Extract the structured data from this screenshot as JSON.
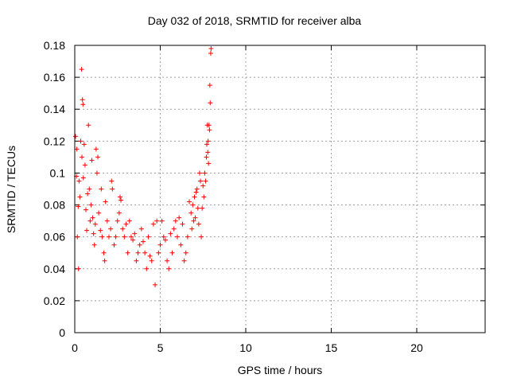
{
  "chart_data": {
    "type": "scatter",
    "title": "Day 032 of 2018, SRMTID for receiver alba",
    "xlabel": "GPS time / hours",
    "ylabel": "SRMTID / TECUs",
    "xlim": [
      0,
      24
    ],
    "ylim": [
      0,
      0.18
    ],
    "xticks": [
      0,
      5,
      10,
      15,
      20
    ],
    "xtick_labels": [
      "0",
      "5",
      "10",
      "15",
      "20"
    ],
    "yticks": [
      0,
      0.02,
      0.04,
      0.06,
      0.08,
      0.1,
      0.12,
      0.14,
      0.16,
      0.18
    ],
    "ytick_labels": [
      "0",
      "0.02",
      "0.04",
      "0.06",
      "0.08",
      "0.1",
      "0.12",
      "0.14",
      "0.16",
      "0.18"
    ],
    "grid": true,
    "marker": "+",
    "series": [
      {
        "name": "SRMTID",
        "color": "#ff0000",
        "points": [
          [
            0.05,
            0.123
          ],
          [
            0.1,
            0.098
          ],
          [
            0.12,
            0.115
          ],
          [
            0.15,
            0.06
          ],
          [
            0.2,
            0.079
          ],
          [
            0.22,
            0.04
          ],
          [
            0.25,
            0.095
          ],
          [
            0.3,
            0.085
          ],
          [
            0.35,
            0.12
          ],
          [
            0.4,
            0.165
          ],
          [
            0.42,
            0.11
          ],
          [
            0.45,
            0.146
          ],
          [
            0.48,
            0.143
          ],
          [
            0.5,
            0.097
          ],
          [
            0.55,
            0.118
          ],
          [
            0.6,
            0.105
          ],
          [
            0.65,
            0.077
          ],
          [
            0.7,
            0.064
          ],
          [
            0.75,
            0.087
          ],
          [
            0.8,
            0.13
          ],
          [
            0.85,
            0.09
          ],
          [
            0.9,
            0.07
          ],
          [
            0.95,
            0.08
          ],
          [
            1.0,
            0.108
          ],
          [
            1.05,
            0.072
          ],
          [
            1.1,
            0.062
          ],
          [
            1.15,
            0.055
          ],
          [
            1.2,
            0.068
          ],
          [
            1.25,
            0.115
          ],
          [
            1.3,
            0.1
          ],
          [
            1.35,
            0.11
          ],
          [
            1.4,
            0.075
          ],
          [
            1.5,
            0.064
          ],
          [
            1.55,
            0.09
          ],
          [
            1.6,
            0.06
          ],
          [
            1.7,
            0.05
          ],
          [
            1.75,
            0.045
          ],
          [
            1.8,
            0.082
          ],
          [
            1.9,
            0.07
          ],
          [
            2.0,
            0.06
          ],
          [
            2.1,
            0.065
          ],
          [
            2.15,
            0.095
          ],
          [
            2.2,
            0.09
          ],
          [
            2.3,
            0.055
          ],
          [
            2.4,
            0.06
          ],
          [
            2.5,
            0.07
          ],
          [
            2.6,
            0.075
          ],
          [
            2.65,
            0.085
          ],
          [
            2.7,
            0.083
          ],
          [
            2.8,
            0.065
          ],
          [
            2.9,
            0.06
          ],
          [
            3.0,
            0.068
          ],
          [
            3.1,
            0.05
          ],
          [
            3.2,
            0.07
          ],
          [
            3.3,
            0.06
          ],
          [
            3.4,
            0.058
          ],
          [
            3.5,
            0.062
          ],
          [
            3.6,
            0.045
          ],
          [
            3.7,
            0.05
          ],
          [
            3.8,
            0.055
          ],
          [
            3.9,
            0.065
          ],
          [
            4.0,
            0.057
          ],
          [
            4.1,
            0.05
          ],
          [
            4.2,
            0.04
          ],
          [
            4.3,
            0.06
          ],
          [
            4.4,
            0.048
          ],
          [
            4.5,
            0.045
          ],
          [
            4.6,
            0.068
          ],
          [
            4.7,
            0.03
          ],
          [
            4.8,
            0.07
          ],
          [
            4.9,
            0.05
          ],
          [
            5.0,
            0.055
          ],
          [
            5.1,
            0.07
          ],
          [
            5.2,
            0.06
          ],
          [
            5.3,
            0.058
          ],
          [
            5.4,
            0.045
          ],
          [
            5.5,
            0.04
          ],
          [
            5.6,
            0.062
          ],
          [
            5.7,
            0.05
          ],
          [
            5.8,
            0.065
          ],
          [
            5.9,
            0.07
          ],
          [
            6.0,
            0.06
          ],
          [
            6.1,
            0.072
          ],
          [
            6.2,
            0.055
          ],
          [
            6.3,
            0.068
          ],
          [
            6.4,
            0.045
          ],
          [
            6.5,
            0.05
          ],
          [
            6.6,
            0.06
          ],
          [
            6.7,
            0.082
          ],
          [
            6.8,
            0.075
          ],
          [
            6.85,
            0.065
          ],
          [
            6.9,
            0.08
          ],
          [
            6.95,
            0.07
          ],
          [
            7.0,
            0.085
          ],
          [
            7.05,
            0.072
          ],
          [
            7.1,
            0.088
          ],
          [
            7.15,
            0.09
          ],
          [
            7.2,
            0.078
          ],
          [
            7.25,
            0.068
          ],
          [
            7.3,
            0.1
          ],
          [
            7.35,
            0.095
          ],
          [
            7.4,
            0.06
          ],
          [
            7.45,
            0.078
          ],
          [
            7.5,
            0.092
          ],
          [
            7.55,
            0.085
          ],
          [
            7.6,
            0.1
          ],
          [
            7.65,
            0.095
          ],
          [
            7.7,
            0.11
          ],
          [
            7.72,
            0.118
          ],
          [
            7.75,
            0.13
          ],
          [
            7.78,
            0.113
          ],
          [
            7.8,
            0.12
          ],
          [
            7.82,
            0.106
          ],
          [
            7.85,
            0.13
          ],
          [
            7.88,
            0.127
          ],
          [
            7.9,
            0.155
          ],
          [
            7.92,
            0.144
          ],
          [
            7.95,
            0.175
          ],
          [
            7.97,
            0.178
          ]
        ]
      }
    ]
  }
}
